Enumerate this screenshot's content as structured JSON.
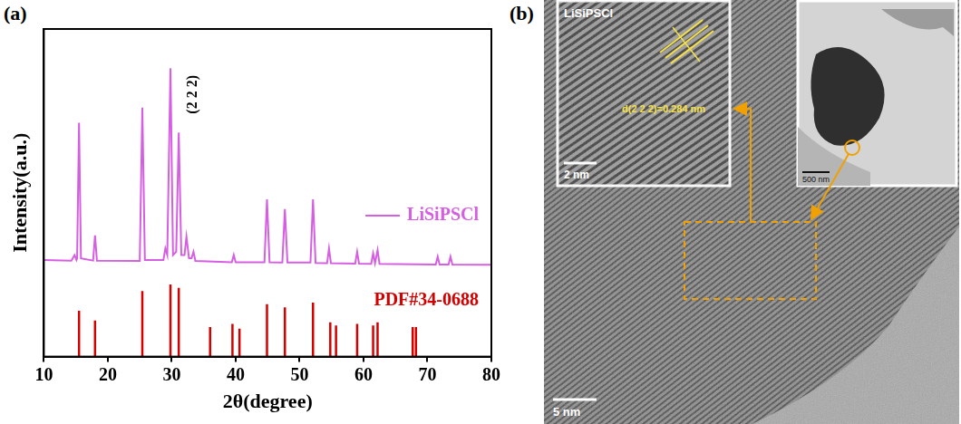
{
  "panel_labels": [
    "(a)",
    "(b)"
  ],
  "chart_data": {
    "type": "line",
    "x_label": "2θ(degree)",
    "y_label": "Intensity(a.u.)",
    "xlim": [
      10,
      80
    ],
    "xticks": [
      10,
      20,
      30,
      40,
      50,
      60,
      70,
      80
    ],
    "ylim": [
      0,
      100
    ],
    "yticks": [],
    "tick_labels": "x",
    "grid": false,
    "legend": "right",
    "annotations": [
      {
        "text": "(2 2 2)",
        "x": 31.1
      }
    ],
    "series": [
      {
        "name": "LiSiPSCl",
        "type": "line",
        "color": "#d65ee3",
        "x": [
          10,
          14.3,
          14.8,
          15.1,
          15.2,
          15.5,
          15.8,
          17.7,
          18.0,
          18.3,
          25.0,
          25.4,
          25.8,
          28.7,
          29.0,
          29.3,
          29.8,
          30.2,
          30.7,
          31.1,
          31.5,
          32.0,
          32.3,
          32.7,
          33.1,
          33.4,
          33.7,
          39.4,
          39.7,
          40.0,
          44.5,
          44.9,
          45.3,
          47.3,
          47.7,
          48.1,
          51.7,
          52.1,
          52.5,
          54.3,
          54.6,
          54.9,
          58.7,
          59.0,
          59.3,
          61.2,
          61.5,
          61.8,
          62.2,
          62.5,
          71.3,
          71.6,
          71.9,
          73.3,
          73.6,
          73.9,
          80
        ],
        "values": [
          29.5,
          29.3,
          31,
          29.5,
          30,
          71.4,
          30,
          29.3,
          37,
          29.3,
          29.2,
          76,
          29.5,
          29.5,
          33,
          31,
          88,
          31,
          32,
          68.4,
          31,
          31,
          36.6,
          30,
          30,
          32,
          29.2,
          28.8,
          31,
          28.8,
          28.8,
          48,
          28.8,
          28.7,
          45,
          28.7,
          28.7,
          48,
          28.6,
          28.5,
          33,
          28.5,
          28.4,
          32,
          28.4,
          28.3,
          31.5,
          28.5,
          32.5,
          28.3,
          28.1,
          30.5,
          28.1,
          28.1,
          30.5,
          28.1,
          28
        ]
      },
      {
        "name": "PDF#34-0688",
        "type": "stick",
        "color": "#d40000",
        "x": [
          15.5,
          18.0,
          25.4,
          29.8,
          31.1,
          36.0,
          39.5,
          40.6,
          44.9,
          47.7,
          52.1,
          54.8,
          55.7,
          59.0,
          61.5,
          62.2,
          67.7,
          68.2
        ],
        "values": [
          14,
          11,
          20,
          22,
          21,
          9,
          10,
          8.5,
          16,
          15,
          16.5,
          10.5,
          9.5,
          10,
          9.5,
          10.5,
          9,
          9
        ]
      }
    ]
  },
  "image_panel": {
    "left_inset": {
      "title": "LiSiPSCl",
      "annotation": "d(2 2 2)=0.284 nm",
      "scale_bar": "2 nm"
    },
    "right_inset": {
      "scale_bar": "500 nm"
    },
    "scale_bar": "5 nm"
  }
}
